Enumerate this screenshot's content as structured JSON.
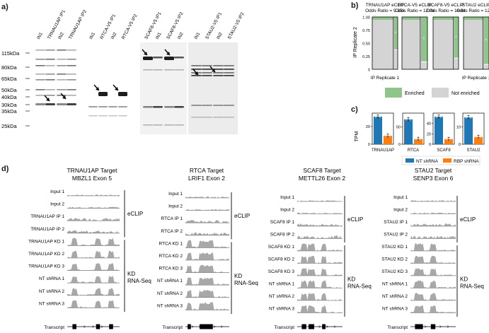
{
  "panels": {
    "a": "a)",
    "b": "b)",
    "c": "c)",
    "d": "d)"
  },
  "panel_a": {
    "markers": [
      "115kDa",
      "80kDa",
      "65kDa",
      "50kDa",
      "40kDa",
      "30kDa",
      "35kDa",
      "25kDa"
    ],
    "lanes": [
      [
        "IN1",
        "TRNAU1AP IP1",
        "IN2",
        "TRNAU1AP IP2"
      ],
      [
        "IN1",
        "RTCA-V5 IP1",
        "IN2",
        "RTCA-V5 IP2"
      ],
      [
        "SCAF8-V5 IP1",
        "IN1",
        "SCAF8-V5 IP2",
        "IN2"
      ],
      [
        "IN1",
        "STAU2-V5 IP1",
        "IN2",
        "STAU2-V5 IP2"
      ]
    ]
  },
  "panel_b": {
    "ylabel": "IP Replicate 2",
    "xlabel": "IP Replicate 1",
    "yticks": [
      "1.00",
      "0.75",
      "0.50",
      "0.25",
      "0"
    ],
    "legend": {
      "enriched": "Enriched",
      "not_enriched": "Not enriched"
    },
    "colors": {
      "enriched": "#8fc58a",
      "not_enriched": "#d4d4d4"
    },
    "plots": [
      {
        "title": "TRNAU1AP eCLIP",
        "odds": "Odds Ratio = 9.35x",
        "green_x": 0.83,
        "green_y": 0.38
      },
      {
        "title": "RTCA-V5 eCLIP",
        "odds": "Odds Ratio = 12.3x",
        "green_x": 0.72,
        "green_y": 0.15
      },
      {
        "title": "SCAF8-V5 eCLIP",
        "odds": "Odds Ratio = 16.9x",
        "green_x": 0.8,
        "green_y": 0.22
      },
      {
        "title": "STAU2 eCLIP",
        "odds": "Odds Ratio = 12.4x",
        "green_x": 0.77,
        "green_y": 0.1
      }
    ]
  },
  "panel_c": {
    "ylabel": "TPM",
    "legend": {
      "nt": "NT shRNA",
      "rbp": "RBP shRNA"
    },
    "colors": {
      "nt": "#1f77b4",
      "rbp": "#ff7f0e"
    },
    "chart_data": [
      {
        "type": "bar",
        "title": "TRNAU1AP",
        "yticks": [
          0,
          20
        ],
        "ylim": [
          0,
          35
        ],
        "values": {
          "nt": 31,
          "rbp": 9.5
        }
      },
      {
        "type": "bar",
        "title": "RTCA",
        "yticks": [
          0,
          50
        ],
        "ylim": [
          0,
          90
        ],
        "values": {
          "nt": 72,
          "rbp": 15
        }
      },
      {
        "type": "bar",
        "title": "SCAF8",
        "yticks": [
          0,
          20,
          40
        ],
        "ylim": [
          0,
          60
        ],
        "values": {
          "nt": 53,
          "rbp": 10
        }
      },
      {
        "type": "bar",
        "title": "STAU2",
        "yticks": [
          0,
          10
        ],
        "ylim": [
          0,
          18
        ],
        "values": {
          "nt": 15.5,
          "rbp": 4.2
        }
      }
    ]
  },
  "panel_d": {
    "transcript_label": "Transcript",
    "eclip_label": "eCLIP",
    "kd_label": "KD\nRNA-Seq",
    "groups": [
      {
        "title1": "TRNAU1AP Target",
        "title2": "MBZL1 Exon 5",
        "tracks": [
          "Input 1",
          "Input 2",
          "TRNAU1AP IP 1",
          "TRNAU1AP IP 2",
          "TRNAU1AP KD 1",
          "TRNAU1AP KD 2",
          "TRNAU1AP KD 3",
          "NT shRNA 1",
          "NT shRNA 2",
          "NT shRNA 3"
        ]
      },
      {
        "title1": "RTCA Target",
        "title2": "LRIF1 Exon 2",
        "tracks": [
          "Input 1",
          "Input 2",
          "RTCA IP 1",
          "RTCA IP 2",
          "RTCA KD 1",
          "RTCA KD 2",
          "RTCA KD 3",
          "NT shRNA 1",
          "NT shRNA 2",
          "NT shRNA 3"
        ]
      },
      {
        "title1": "SCAF8 Target",
        "title2": "METTL26 Exon 2",
        "tracks": [
          "Input 1",
          "Input 2",
          "SCAF8 IP 1",
          "SCAF8 IP 2",
          "SCAF8 KD 1",
          "SCAF8 KD 2",
          "SCAF8 KD 3",
          "NT shRNA 1",
          "NT shRNA 2",
          "NT shRNA 3"
        ]
      },
      {
        "title1": "STAU2 Target",
        "title2": "SENP3 Exon 6",
        "tracks": [
          "Input 1",
          "Input 2",
          "STAU2 IP 1",
          "STAU2 IP 2",
          "STAU2 KD 1",
          "STAU2 KD 2",
          "STAU2 KD 3",
          "NT shRNA 1",
          "NT shRNA 2",
          "NT shRNA 3"
        ]
      }
    ]
  }
}
